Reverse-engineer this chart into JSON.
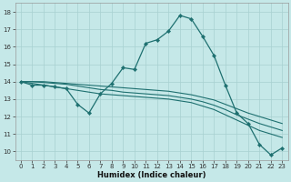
{
  "title": "",
  "xlabel": "Humidex (Indice chaleur)",
  "bg_color": "#c5e8e8",
  "grid_color": "#a8d0d0",
  "line_color": "#1e7070",
  "xlim": [
    -0.5,
    23.5
  ],
  "ylim": [
    9.5,
    18.5
  ],
  "xticks": [
    0,
    1,
    2,
    3,
    4,
    5,
    6,
    7,
    8,
    9,
    10,
    11,
    12,
    13,
    14,
    15,
    16,
    17,
    18,
    19,
    20,
    21,
    22,
    23
  ],
  "yticks": [
    10,
    11,
    12,
    13,
    14,
    15,
    16,
    17,
    18
  ],
  "series1": [
    14.0,
    13.8,
    13.8,
    13.7,
    13.6,
    12.7,
    12.2,
    13.3,
    13.9,
    14.8,
    14.7,
    16.2,
    16.4,
    16.9,
    17.8,
    17.6,
    16.6,
    15.5,
    13.8,
    12.2,
    11.6,
    10.4,
    9.8,
    10.2
  ],
  "series2": [
    14.0,
    13.9,
    13.8,
    13.7,
    13.6,
    13.5,
    13.4,
    13.3,
    13.25,
    13.2,
    13.15,
    13.1,
    13.05,
    13.0,
    12.9,
    12.8,
    12.6,
    12.4,
    12.1,
    11.8,
    11.5,
    11.2,
    11.0,
    10.8
  ],
  "series3": [
    14.0,
    14.0,
    13.95,
    13.9,
    13.85,
    13.75,
    13.65,
    13.55,
    13.5,
    13.4,
    13.35,
    13.3,
    13.25,
    13.2,
    13.1,
    13.0,
    12.85,
    12.65,
    12.4,
    12.1,
    11.85,
    11.6,
    11.4,
    11.2
  ],
  "series4": [
    14.0,
    14.0,
    14.0,
    13.95,
    13.9,
    13.85,
    13.8,
    13.75,
    13.7,
    13.65,
    13.6,
    13.55,
    13.5,
    13.45,
    13.35,
    13.25,
    13.1,
    12.95,
    12.7,
    12.45,
    12.2,
    12.0,
    11.8,
    11.6
  ]
}
